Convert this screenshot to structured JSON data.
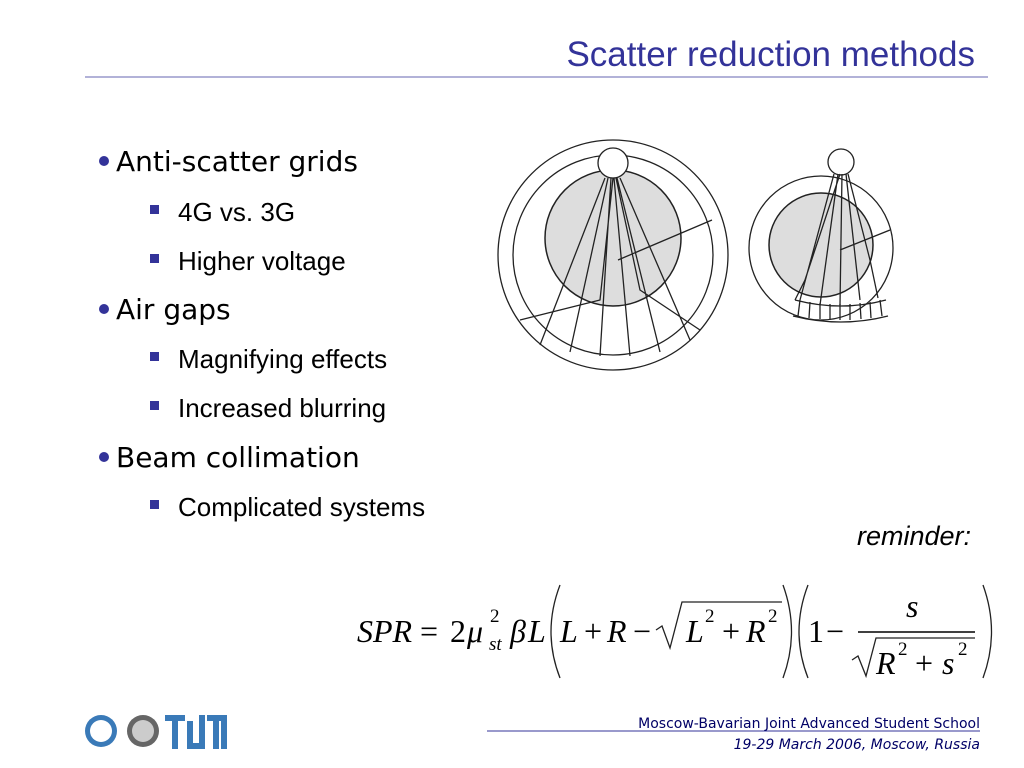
{
  "header": {
    "title": "Scatter reduction methods"
  },
  "bullets": [
    {
      "text": "Anti-scatter grids",
      "items": [
        "4G vs. 3G",
        "Higher voltage"
      ]
    },
    {
      "text": "Air gaps",
      "items": [
        "Magnifying effects",
        "Increased blurring"
      ]
    },
    {
      "text": "Beam collimation",
      "items": [
        "Complicated systems"
      ]
    }
  ],
  "reminder": "reminder:",
  "formula": {
    "parts": [
      "SPR",
      "=",
      "2",
      "μ",
      "2",
      "st",
      "β",
      "L",
      "L",
      "+",
      "R",
      "−",
      "L",
      "2",
      "+",
      "R",
      "2",
      "1",
      "−",
      "s",
      "R",
      "2",
      "+",
      "s",
      "2"
    ]
  },
  "footer": {
    "school": "Moscow-Bavarian Joint Advanced Student School",
    "date": "19-29 March 2006, Moscow, Russia"
  }
}
